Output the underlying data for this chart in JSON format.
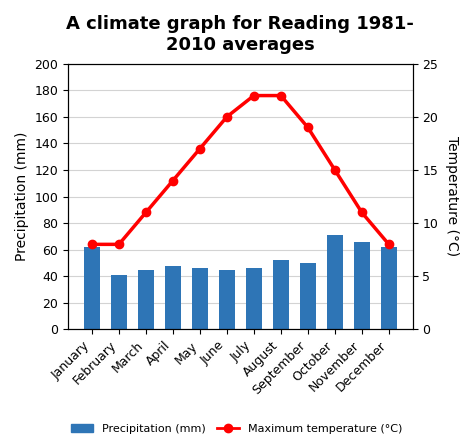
{
  "title_line1": "A climate graph for Reading 1981-",
  "title_line2": "2010 averages",
  "months": [
    "January",
    "February",
    "March",
    "April",
    "May",
    "June",
    "July",
    "August",
    "September",
    "October",
    "November",
    "December"
  ],
  "precipitation": [
    62,
    41,
    45,
    48,
    46,
    45,
    46,
    52,
    50,
    71,
    66,
    62
  ],
  "temperature": [
    8,
    8,
    11,
    14,
    17,
    20,
    22,
    22,
    19,
    15,
    11,
    8
  ],
  "bar_color": "#2e75b6",
  "line_color": "#ff0000",
  "marker_color": "#ff0000",
  "ylabel_left": "Precipitation (mm)",
  "ylabel_right": "Temperature (°C)",
  "ylim_left": [
    0,
    200
  ],
  "ylim_right": [
    0,
    25
  ],
  "yticks_left": [
    0,
    20,
    40,
    60,
    80,
    100,
    120,
    140,
    160,
    180,
    200
  ],
  "yticks_right": [
    0,
    5,
    10,
    15,
    20,
    25
  ],
  "legend_precip": "Precipitation (mm)",
  "legend_temp": "Maximum temperature (°C)",
  "background_color": "#ffffff",
  "title_fontsize": 13,
  "axis_fontsize": 10,
  "tick_fontsize": 9
}
